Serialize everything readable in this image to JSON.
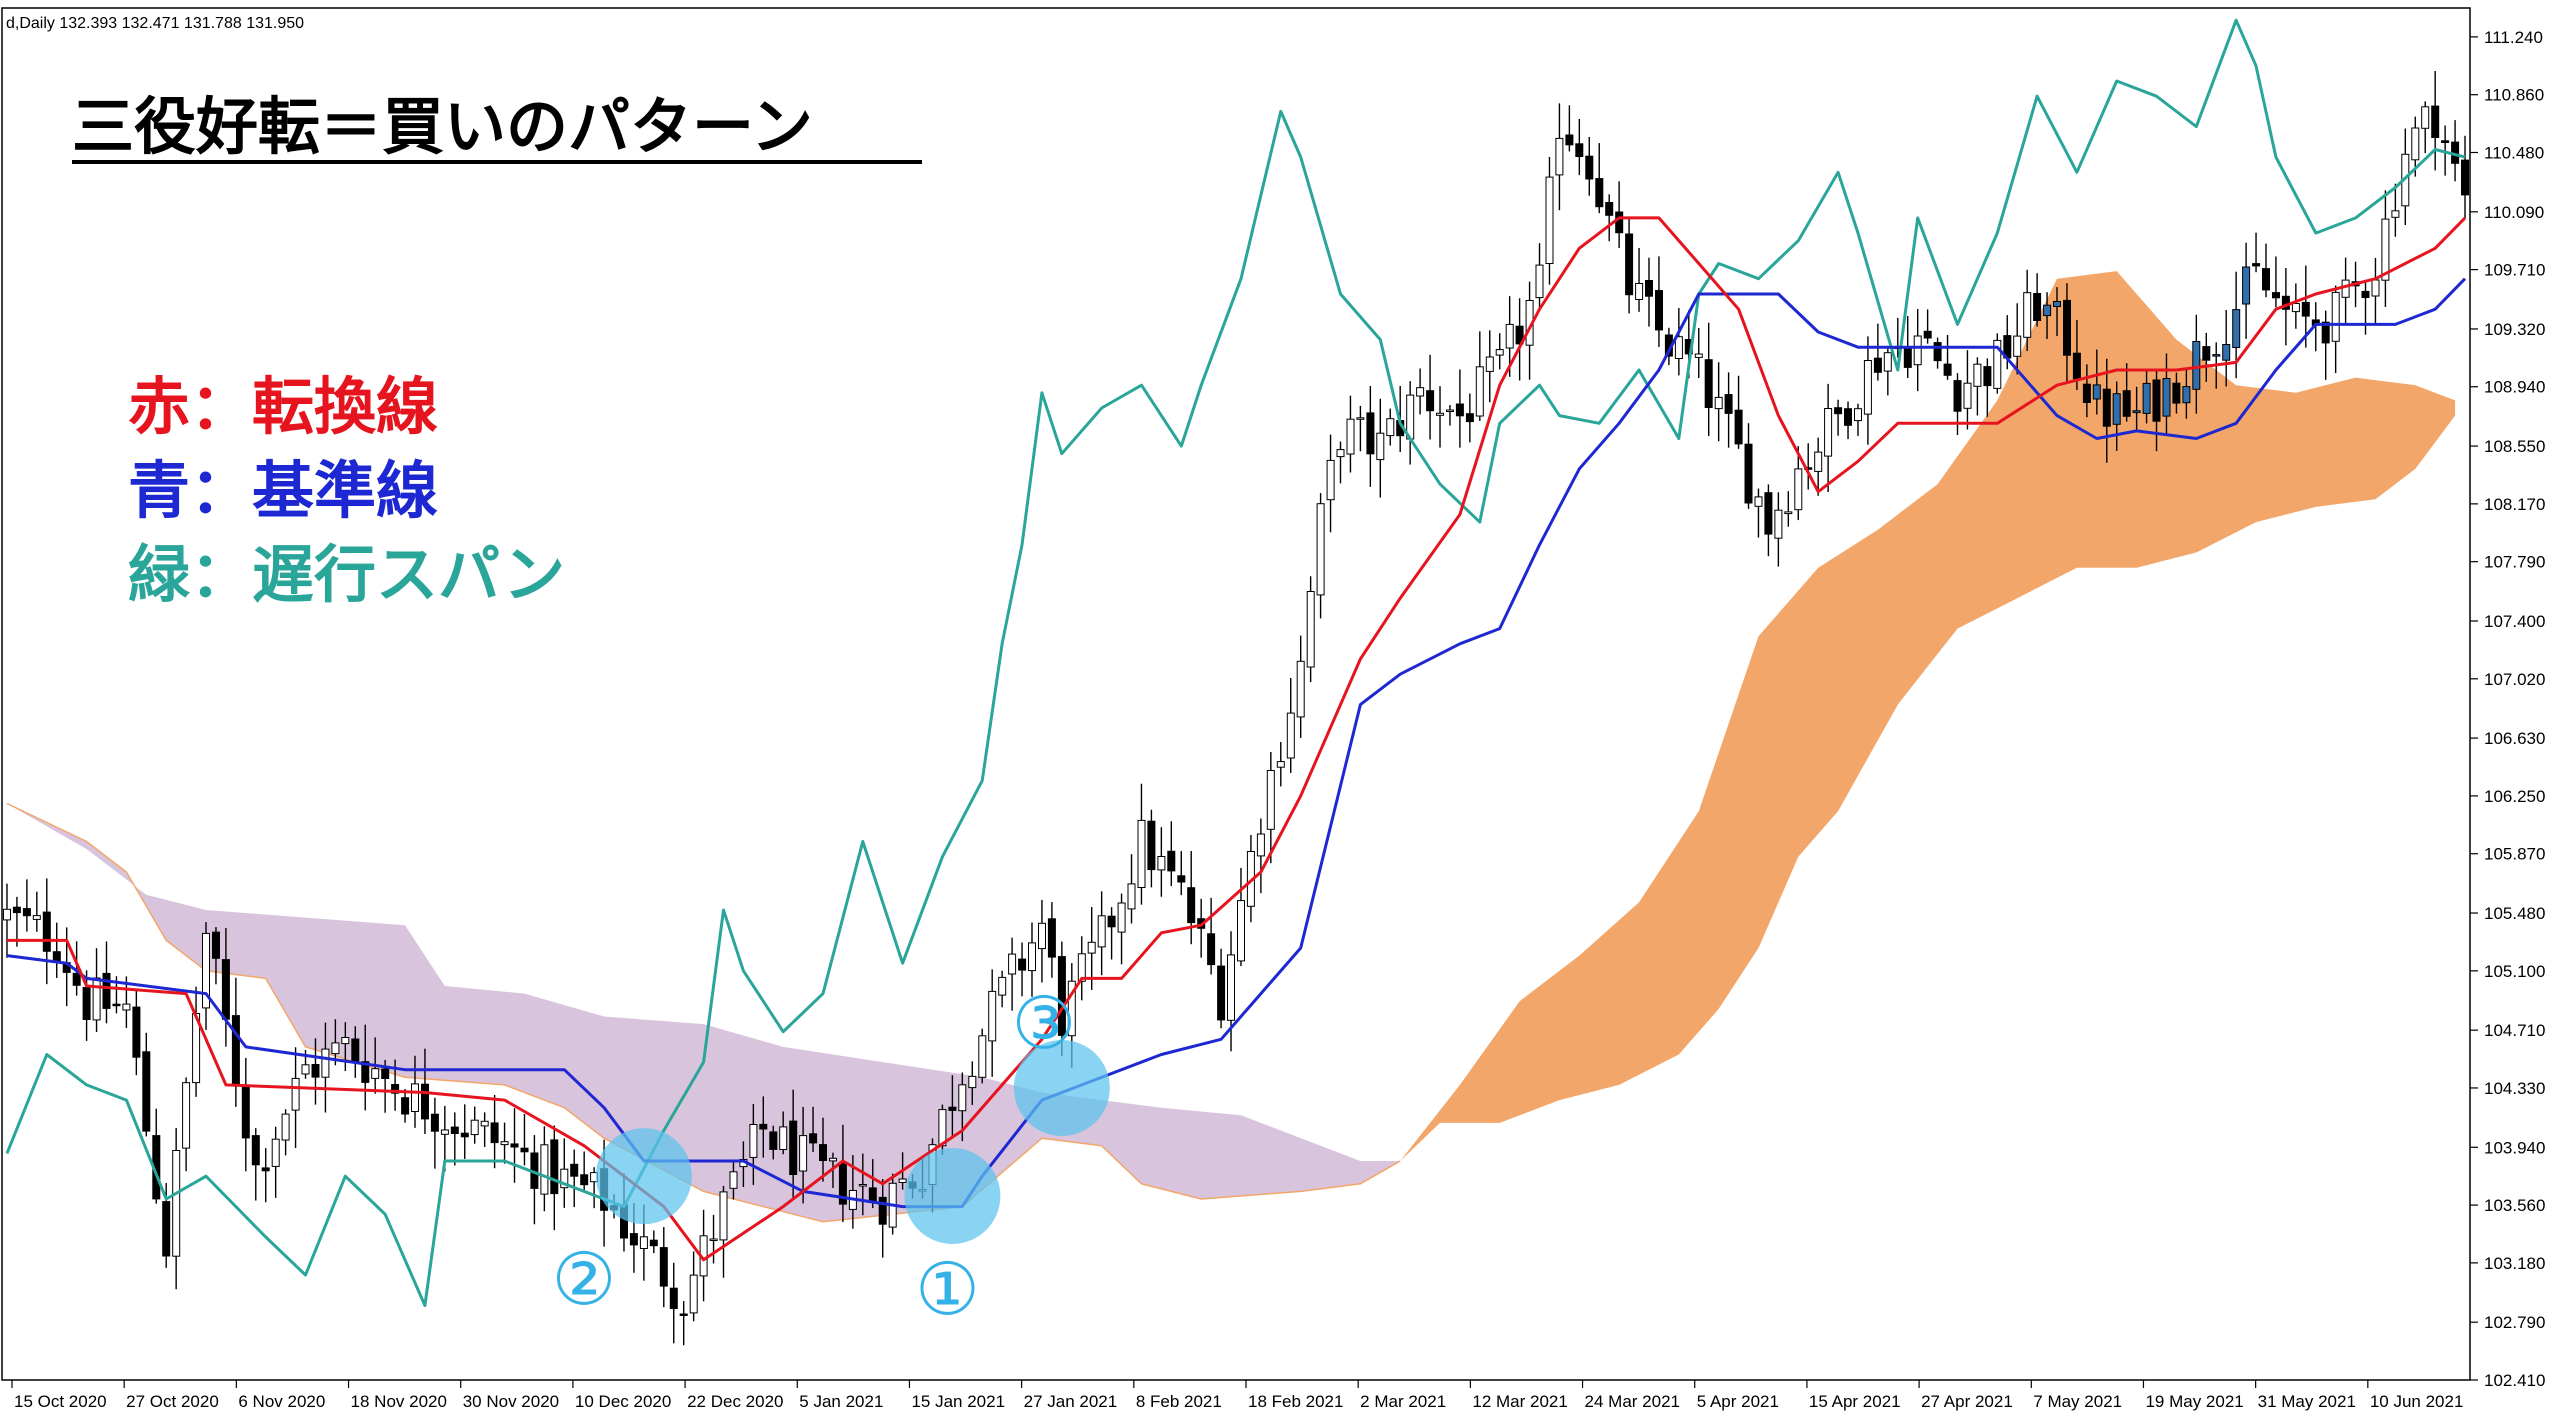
{
  "header": {
    "symbol_info": "d,Daily  132.393 132.471 131.788 131.950"
  },
  "title": "三役好転＝買いのパターン",
  "legend": [
    {
      "text": "赤：転換線",
      "color": "#e6141e"
    },
    {
      "text": "青：基準線",
      "color": "#1e28d2"
    },
    {
      "text": "緑：遅行スパン",
      "color": "#2aa59a"
    }
  ],
  "colors": {
    "background": "#ffffff",
    "candle_up_fill": "#ffffff",
    "candle_down_fill": "#000000",
    "candle_highlight_fill": "#2f6fae",
    "tenkan": "#e6141e",
    "kijun": "#1e28d2",
    "chikou": "#2aa59a",
    "cloud_bullish": "#f3a66a",
    "cloud_bearish": "#d8c4dc",
    "marker_fill": "#5bc4ee",
    "marker_text": "#34b1e6"
  },
  "chart_data": {
    "type": "candlestick",
    "timeframe": "Daily",
    "ylim": [
      102.41,
      111.43
    ],
    "y_ticks": [
      "111.240",
      "110.860",
      "110.480",
      "110.090",
      "109.710",
      "109.320",
      "108.940",
      "108.550",
      "108.170",
      "107.790",
      "107.400",
      "107.020",
      "106.630",
      "106.250",
      "105.870",
      "105.480",
      "105.100",
      "104.710",
      "104.330",
      "103.940",
      "103.560",
      "103.180",
      "102.790",
      "102.410"
    ],
    "x_ticks": [
      "15 Oct 2020",
      "27 Oct 2020",
      "6 Nov 2020",
      "18 Nov 2020",
      "30 Nov 2020",
      "10 Dec 2020",
      "22 Dec 2020",
      "5 Jan 2021",
      "15 Jan 2021",
      "27 Jan 2021",
      "8 Feb 2021",
      "18 Feb 2021",
      "2 Mar 2021",
      "12 Mar 2021",
      "24 Mar 2021",
      "5 Apr 2021",
      "15 Apr 2021",
      "27 Apr 2021",
      "7 May 2021",
      "19 May 2021",
      "31 May 2021",
      "10 Jun 2021"
    ],
    "close_path": [
      [
        0,
        105.45
      ],
      [
        5,
        105.3
      ],
      [
        8,
        104.9
      ],
      [
        12,
        104.85
      ],
      [
        16,
        103.3
      ],
      [
        20,
        105.35
      ],
      [
        25,
        103.8
      ],
      [
        30,
        104.45
      ],
      [
        34,
        104.6
      ],
      [
        40,
        104.3
      ],
      [
        44,
        104.15
      ],
      [
        50,
        103.95
      ],
      [
        55,
        103.75
      ],
      [
        60,
        103.6
      ],
      [
        65,
        103.2
      ],
      [
        68,
        102.95
      ],
      [
        72,
        103.55
      ],
      [
        76,
        104.05
      ],
      [
        82,
        103.75
      ],
      [
        88,
        103.6
      ],
      [
        92,
        103.8
      ],
      [
        96,
        104.45
      ],
      [
        100,
        104.95
      ],
      [
        104,
        105.4
      ],
      [
        106,
        104.8
      ],
      [
        110,
        105.3
      ],
      [
        114,
        105.95
      ],
      [
        118,
        105.6
      ],
      [
        122,
        104.95
      ],
      [
        126,
        106.15
      ],
      [
        130,
        107.1
      ],
      [
        132,
        108.05
      ],
      [
        134,
        108.65
      ],
      [
        138,
        108.55
      ],
      [
        142,
        108.9
      ],
      [
        146,
        108.75
      ],
      [
        150,
        109.05
      ],
      [
        154,
        109.6
      ],
      [
        156,
        110.7
      ],
      [
        159,
        110.45
      ],
      [
        161,
        110.0
      ],
      [
        163,
        109.6
      ],
      [
        166,
        109.3
      ],
      [
        169,
        109.1
      ],
      [
        171,
        108.9
      ],
      [
        174,
        108.5
      ],
      [
        177,
        108.05
      ],
      [
        180,
        108.4
      ],
      [
        184,
        108.75
      ],
      [
        188,
        109.15
      ],
      [
        192,
        109.25
      ],
      [
        196,
        108.95
      ],
      [
        200,
        109.1
      ],
      [
        204,
        109.5
      ],
      [
        207,
        109.25
      ],
      [
        210,
        108.8
      ],
      [
        214,
        108.75
      ],
      [
        218,
        109.0
      ],
      [
        222,
        109.3
      ],
      [
        226,
        109.65
      ],
      [
        230,
        109.35
      ],
      [
        234,
        109.4
      ],
      [
        238,
        109.75
      ],
      [
        241,
        110.5
      ],
      [
        244,
        110.75
      ],
      [
        247,
        110.15
      ]
    ],
    "candles_spacing_days": 1,
    "highlight_candles": {
      "range": [
        205,
        228
      ]
    },
    "tenkan_path": [
      [
        0,
        105.3
      ],
      [
        6,
        105.3
      ],
      [
        8,
        105.0
      ],
      [
        18,
        104.95
      ],
      [
        22,
        104.35
      ],
      [
        42,
        104.3
      ],
      [
        50,
        104.25
      ],
      [
        58,
        103.95
      ],
      [
        66,
        103.55
      ],
      [
        70,
        103.2
      ],
      [
        78,
        103.55
      ],
      [
        84,
        103.85
      ],
      [
        88,
        103.7
      ],
      [
        96,
        104.05
      ],
      [
        104,
        104.65
      ],
      [
        108,
        105.05
      ],
      [
        112,
        105.05
      ],
      [
        116,
        105.35
      ],
      [
        120,
        105.4
      ],
      [
        126,
        105.75
      ],
      [
        130,
        106.25
      ],
      [
        136,
        107.15
      ],
      [
        140,
        107.55
      ],
      [
        146,
        108.1
      ],
      [
        150,
        108.95
      ],
      [
        154,
        109.45
      ],
      [
        158,
        109.85
      ],
      [
        162,
        110.05
      ],
      [
        166,
        110.05
      ],
      [
        170,
        109.75
      ],
      [
        174,
        109.45
      ],
      [
        178,
        108.75
      ],
      [
        182,
        108.25
      ],
      [
        186,
        108.45
      ],
      [
        190,
        108.7
      ],
      [
        194,
        108.7
      ],
      [
        200,
        108.7
      ],
      [
        206,
        108.95
      ],
      [
        212,
        109.05
      ],
      [
        218,
        109.05
      ],
      [
        224,
        109.1
      ],
      [
        228,
        109.45
      ],
      [
        232,
        109.55
      ],
      [
        238,
        109.65
      ],
      [
        244,
        109.85
      ],
      [
        247,
        110.05
      ]
    ],
    "kijun_path": [
      [
        0,
        105.2
      ],
      [
        6,
        105.15
      ],
      [
        8,
        105.05
      ],
      [
        20,
        104.95
      ],
      [
        24,
        104.6
      ],
      [
        40,
        104.45
      ],
      [
        56,
        104.45
      ],
      [
        60,
        104.2
      ],
      [
        64,
        103.85
      ],
      [
        74,
        103.85
      ],
      [
        80,
        103.65
      ],
      [
        90,
        103.55
      ],
      [
        96,
        103.55
      ],
      [
        98,
        103.75
      ],
      [
        104,
        104.25
      ],
      [
        108,
        104.35
      ],
      [
        116,
        104.55
      ],
      [
        122,
        104.65
      ],
      [
        126,
        104.95
      ],
      [
        130,
        105.25
      ],
      [
        136,
        106.85
      ],
      [
        140,
        107.05
      ],
      [
        146,
        107.25
      ],
      [
        150,
        107.35
      ],
      [
        154,
        107.9
      ],
      [
        158,
        108.4
      ],
      [
        162,
        108.7
      ],
      [
        166,
        109.05
      ],
      [
        170,
        109.55
      ],
      [
        174,
        109.55
      ],
      [
        178,
        109.55
      ],
      [
        182,
        109.3
      ],
      [
        186,
        109.2
      ],
      [
        200,
        109.2
      ],
      [
        206,
        108.75
      ],
      [
        210,
        108.6
      ],
      [
        214,
        108.65
      ],
      [
        220,
        108.6
      ],
      [
        224,
        108.7
      ],
      [
        228,
        109.05
      ],
      [
        232,
        109.35
      ],
      [
        240,
        109.35
      ],
      [
        244,
        109.45
      ],
      [
        247,
        109.65
      ]
    ],
    "chikou_path": [
      [
        0,
        103.9
      ],
      [
        4,
        104.55
      ],
      [
        8,
        104.35
      ],
      [
        12,
        104.25
      ],
      [
        16,
        103.6
      ],
      [
        20,
        103.75
      ],
      [
        26,
        103.35
      ],
      [
        30,
        103.1
      ],
      [
        34,
        103.75
      ],
      [
        38,
        103.5
      ],
      [
        42,
        102.9
      ],
      [
        44,
        103.85
      ],
      [
        50,
        103.85
      ],
      [
        56,
        103.7
      ],
      [
        62,
        103.55
      ],
      [
        66,
        104.05
      ],
      [
        70,
        104.5
      ],
      [
        72,
        105.5
      ],
      [
        74,
        105.1
      ],
      [
        78,
        104.7
      ],
      [
        82,
        104.95
      ],
      [
        86,
        105.95
      ],
      [
        90,
        105.15
      ],
      [
        94,
        105.85
      ],
      [
        98,
        106.35
      ],
      [
        100,
        107.25
      ],
      [
        102,
        107.9
      ],
      [
        104,
        108.9
      ],
      [
        106,
        108.5
      ],
      [
        110,
        108.8
      ],
      [
        114,
        108.95
      ],
      [
        118,
        108.55
      ],
      [
        120,
        108.95
      ],
      [
        124,
        109.65
      ],
      [
        128,
        110.75
      ],
      [
        130,
        110.45
      ],
      [
        134,
        109.55
      ],
      [
        138,
        109.25
      ],
      [
        140,
        108.7
      ],
      [
        144,
        108.3
      ],
      [
        148,
        108.05
      ],
      [
        150,
        108.7
      ],
      [
        154,
        108.95
      ],
      [
        156,
        108.75
      ],
      [
        160,
        108.7
      ],
      [
        164,
        109.05
      ],
      [
        168,
        108.6
      ],
      [
        170,
        109.55
      ],
      [
        172,
        109.75
      ],
      [
        176,
        109.65
      ],
      [
        180,
        109.9
      ],
      [
        184,
        110.35
      ],
      [
        186,
        109.95
      ],
      [
        190,
        109.05
      ],
      [
        192,
        110.05
      ],
      [
        196,
        109.35
      ],
      [
        200,
        109.95
      ],
      [
        204,
        110.85
      ],
      [
        208,
        110.35
      ],
      [
        212,
        110.95
      ],
      [
        216,
        110.85
      ],
      [
        220,
        110.65
      ],
      [
        224,
        111.35
      ],
      [
        226,
        111.05
      ],
      [
        228,
        110.45
      ],
      [
        232,
        109.95
      ],
      [
        236,
        110.05
      ],
      [
        240,
        110.25
      ],
      [
        244,
        110.5
      ],
      [
        247,
        110.45
      ]
    ],
    "cloud_bearish_path": {
      "upper": [
        [
          0,
          106.2
        ],
        [
          8,
          105.9
        ],
        [
          14,
          105.6
        ],
        [
          20,
          105.5
        ],
        [
          30,
          105.45
        ],
        [
          40,
          105.4
        ],
        [
          44,
          105.0
        ],
        [
          52,
          104.95
        ],
        [
          60,
          104.8
        ],
        [
          70,
          104.75
        ],
        [
          78,
          104.6
        ],
        [
          88,
          104.5
        ],
        [
          98,
          104.4
        ],
        [
          104,
          104.3
        ],
        [
          110,
          104.25
        ],
        [
          116,
          104.2
        ],
        [
          124,
          104.15
        ],
        [
          136,
          103.85
        ],
        [
          140,
          103.85
        ]
      ],
      "lower": [
        [
          0,
          106.2
        ],
        [
          8,
          105.95
        ],
        [
          12,
          105.75
        ],
        [
          16,
          105.3
        ],
        [
          20,
          105.1
        ],
        [
          26,
          105.05
        ],
        [
          30,
          104.6
        ],
        [
          40,
          104.4
        ],
        [
          50,
          104.35
        ],
        [
          56,
          104.2
        ],
        [
          60,
          104.0
        ],
        [
          70,
          103.65
        ],
        [
          82,
          103.45
        ],
        [
          96,
          103.55
        ],
        [
          104,
          104.0
        ],
        [
          110,
          103.95
        ],
        [
          114,
          103.7
        ],
        [
          120,
          103.6
        ],
        [
          130,
          103.65
        ],
        [
          136,
          103.7
        ],
        [
          140,
          103.85
        ]
      ]
    },
    "cloud_bullish_path": {
      "upper": [
        [
          140,
          103.85
        ],
        [
          146,
          104.35
        ],
        [
          152,
          104.9
        ],
        [
          158,
          105.2
        ],
        [
          164,
          105.55
        ],
        [
          170,
          106.15
        ],
        [
          176,
          107.3
        ],
        [
          182,
          107.75
        ],
        [
          188,
          108.0
        ],
        [
          194,
          108.3
        ],
        [
          200,
          108.85
        ],
        [
          206,
          109.65
        ],
        [
          212,
          109.7
        ],
        [
          218,
          109.25
        ],
        [
          224,
          108.95
        ],
        [
          230,
          108.9
        ],
        [
          236,
          109.0
        ],
        [
          242,
          108.95
        ],
        [
          246,
          108.85
        ]
      ],
      "lower": [
        [
          140,
          103.85
        ],
        [
          144,
          104.1
        ],
        [
          150,
          104.1
        ],
        [
          156,
          104.25
        ],
        [
          162,
          104.35
        ],
        [
          168,
          104.55
        ],
        [
          172,
          104.85
        ],
        [
          176,
          105.25
        ],
        [
          180,
          105.85
        ],
        [
          184,
          106.15
        ],
        [
          190,
          106.85
        ],
        [
          196,
          107.35
        ],
        [
          202,
          107.55
        ],
        [
          208,
          107.75
        ],
        [
          214,
          107.75
        ],
        [
          220,
          107.85
        ],
        [
          226,
          108.05
        ],
        [
          232,
          108.15
        ],
        [
          238,
          108.2
        ],
        [
          242,
          108.4
        ],
        [
          246,
          108.75
        ]
      ]
    },
    "markers": [
      {
        "label": "①",
        "bar": 95,
        "price": 103.62
      },
      {
        "label": "②",
        "bar": 64,
        "price": 103.75
      },
      {
        "label": "③",
        "bar": 106,
        "price": 104.33
      }
    ]
  }
}
